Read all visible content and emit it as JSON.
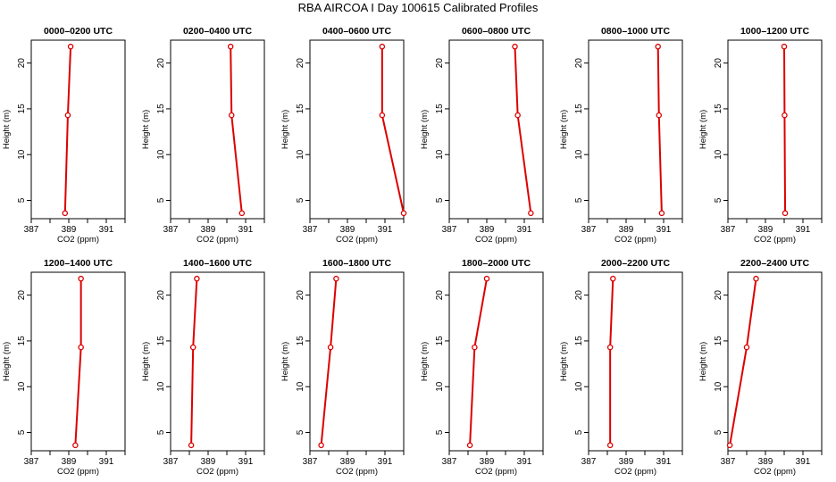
{
  "title": "RBA AIRCOA I  Day 100615  Calibrated Profiles",
  "colors": {
    "series": "#dd0000",
    "frame": "#000000",
    "background": "#ffffff"
  },
  "chart_data": [
    {
      "type": "line",
      "title": "0000–0200 UTC",
      "xlabel": "CO2 (ppm)",
      "ylabel": "Height (m)",
      "xlim": [
        387,
        392
      ],
      "ylim": [
        3,
        22.5
      ],
      "xticks": [
        387,
        389,
        391
      ],
      "yticks": [
        5,
        10,
        15,
        20
      ],
      "grid": false,
      "series": [
        {
          "x": [
            389.1,
            388.95,
            388.8
          ],
          "y": [
            21.8,
            14.3,
            3.6
          ]
        }
      ]
    },
    {
      "type": "line",
      "title": "0200–0400 UTC",
      "xlabel": "CO2 (ppm)",
      "ylabel": "Height (m)",
      "xlim": [
        387,
        392
      ],
      "ylim": [
        3,
        22.5
      ],
      "xticks": [
        387,
        389,
        391
      ],
      "yticks": [
        5,
        10,
        15,
        20
      ],
      "grid": false,
      "series": [
        {
          "x": [
            390.2,
            390.25,
            390.8
          ],
          "y": [
            21.8,
            14.3,
            3.6
          ]
        }
      ]
    },
    {
      "type": "line",
      "title": "0400–0600 UTC",
      "xlabel": "CO2 (ppm)",
      "ylabel": "Height (m)",
      "xlim": [
        387,
        392
      ],
      "ylim": [
        3,
        22.5
      ],
      "xticks": [
        387,
        389,
        391
      ],
      "yticks": [
        5,
        10,
        15,
        20
      ],
      "grid": false,
      "series": [
        {
          "x": [
            390.85,
            390.85,
            392.0
          ],
          "y": [
            21.8,
            14.3,
            3.6
          ]
        }
      ]
    },
    {
      "type": "line",
      "title": "0600–0800 UTC",
      "xlabel": "CO2 (ppm)",
      "ylabel": "Height (m)",
      "xlim": [
        387,
        392
      ],
      "ylim": [
        3,
        22.5
      ],
      "xticks": [
        387,
        389,
        391
      ],
      "yticks": [
        5,
        10,
        15,
        20
      ],
      "grid": false,
      "series": [
        {
          "x": [
            390.5,
            390.65,
            391.35
          ],
          "y": [
            21.8,
            14.3,
            3.6
          ]
        }
      ]
    },
    {
      "type": "line",
      "title": "0800–1000 UTC",
      "xlabel": "CO2 (ppm)",
      "ylabel": "Height (m)",
      "xlim": [
        387,
        392
      ],
      "ylim": [
        3,
        22.5
      ],
      "xticks": [
        387,
        389,
        391
      ],
      "yticks": [
        5,
        10,
        15,
        20
      ],
      "grid": false,
      "series": [
        {
          "x": [
            390.7,
            390.75,
            390.9
          ],
          "y": [
            21.8,
            14.3,
            3.6
          ]
        }
      ]
    },
    {
      "type": "line",
      "title": "1000–1200 UTC",
      "xlabel": "CO2 (ppm)",
      "ylabel": "Height (m)",
      "xlim": [
        387,
        392
      ],
      "ylim": [
        3,
        22.5
      ],
      "xticks": [
        387,
        389,
        391
      ],
      "yticks": [
        5,
        10,
        15,
        20
      ],
      "grid": false,
      "series": [
        {
          "x": [
            390.0,
            390.02,
            390.05
          ],
          "y": [
            21.8,
            14.3,
            3.6
          ]
        }
      ]
    },
    {
      "type": "line",
      "title": "1200–1400 UTC",
      "xlabel": "CO2 (ppm)",
      "ylabel": "Height (m)",
      "xlim": [
        387,
        392
      ],
      "ylim": [
        3,
        22.5
      ],
      "xticks": [
        387,
        389,
        391
      ],
      "yticks": [
        5,
        10,
        15,
        20
      ],
      "grid": false,
      "series": [
        {
          "x": [
            389.65,
            389.65,
            389.35
          ],
          "y": [
            21.8,
            14.3,
            3.6
          ]
        }
      ]
    },
    {
      "type": "line",
      "title": "1400–1600 UTC",
      "xlabel": "CO2 (ppm)",
      "ylabel": "Height (m)",
      "xlim": [
        387,
        392
      ],
      "ylim": [
        3,
        22.5
      ],
      "xticks": [
        387,
        389,
        391
      ],
      "yticks": [
        5,
        10,
        15,
        20
      ],
      "grid": false,
      "series": [
        {
          "x": [
            388.4,
            388.2,
            388.1
          ],
          "y": [
            21.8,
            14.3,
            3.6
          ]
        }
      ]
    },
    {
      "type": "line",
      "title": "1600–1800 UTC",
      "xlabel": "CO2 (ppm)",
      "ylabel": "Height (m)",
      "xlim": [
        387,
        392
      ],
      "ylim": [
        3,
        22.5
      ],
      "xticks": [
        387,
        389,
        391
      ],
      "yticks": [
        5,
        10,
        15,
        20
      ],
      "grid": false,
      "series": [
        {
          "x": [
            388.4,
            388.1,
            387.6
          ],
          "y": [
            21.8,
            14.3,
            3.6
          ]
        }
      ]
    },
    {
      "type": "line",
      "title": "1800–2000 UTC",
      "xlabel": "CO2 (ppm)",
      "ylabel": "Height (m)",
      "xlim": [
        387,
        392
      ],
      "ylim": [
        3,
        22.5
      ],
      "xticks": [
        387,
        389,
        391
      ],
      "yticks": [
        5,
        10,
        15,
        20
      ],
      "grid": false,
      "series": [
        {
          "x": [
            389.0,
            388.35,
            388.1
          ],
          "y": [
            21.8,
            14.3,
            3.6
          ]
        }
      ]
    },
    {
      "type": "line",
      "title": "2000–2200 UTC",
      "xlabel": "CO2 (ppm)",
      "ylabel": "Height (m)",
      "xlim": [
        387,
        392
      ],
      "ylim": [
        3,
        22.5
      ],
      "xticks": [
        387,
        389,
        391
      ],
      "yticks": [
        5,
        10,
        15,
        20
      ],
      "grid": false,
      "series": [
        {
          "x": [
            388.3,
            388.15,
            388.15
          ],
          "y": [
            21.8,
            14.3,
            3.6
          ]
        }
      ]
    },
    {
      "type": "line",
      "title": "2200–2400 UTC",
      "xlabel": "CO2 (ppm)",
      "ylabel": "Height (m)",
      "xlim": [
        387,
        392
      ],
      "ylim": [
        3,
        22.5
      ],
      "xticks": [
        387,
        389,
        391
      ],
      "yticks": [
        5,
        10,
        15,
        20
      ],
      "grid": false,
      "series": [
        {
          "x": [
            388.5,
            388.0,
            387.1
          ],
          "y": [
            21.8,
            14.3,
            3.6
          ]
        }
      ]
    }
  ]
}
